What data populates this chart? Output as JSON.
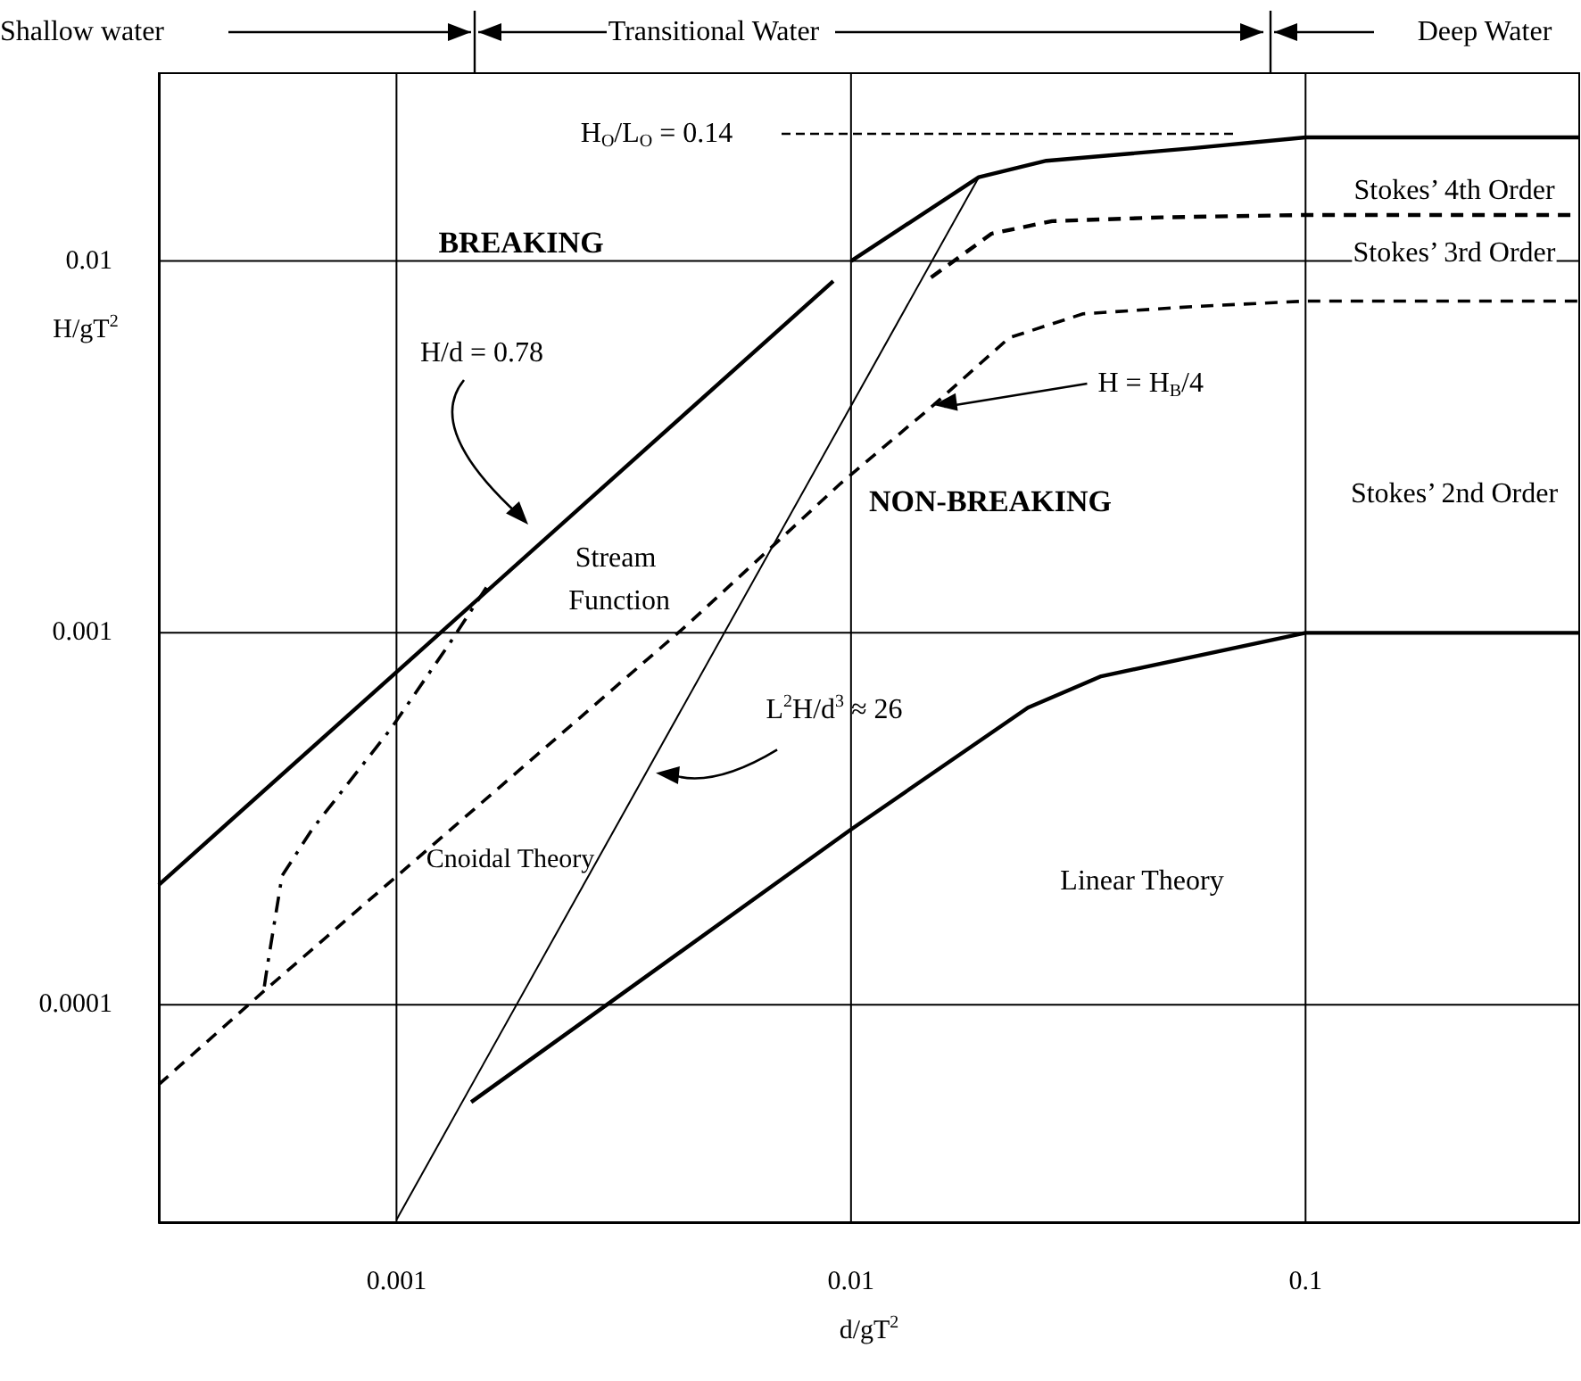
{
  "chart_data": {
    "type": "line",
    "xlabel": "d/gT$^{2}$",
    "ylabel": "H/gT$^{2}$",
    "xlim": [
      0.0003,
      0.4
    ],
    "ylim": [
      2.6e-05,
      0.032
    ],
    "xticks": [
      0.001,
      0.01,
      0.1
    ],
    "yticks": [
      0.0001,
      0.001,
      0.01
    ],
    "log": "xy",
    "grid": true,
    "marker": "none",
    "series": [
      {
        "color": "#000000",
        "line_style": "solid",
        "x": [
          0.0003,
          0.00914
        ],
        "values": [
          0.00021,
          0.00883
        ]
      },
      {
        "color": "#000000",
        "line_style": "solid",
        "x": [
          0.01,
          0.0191,
          0.0269,
          0.0564,
          0.1,
          0.4
        ],
        "values": [
          0.01,
          0.0168,
          0.0186,
          0.0201,
          0.0215,
          0.0215
        ]
      },
      {
        "color": "#000000",
        "line_style": "dashed",
        "x": [
          0.015,
          0.0204,
          0.0277,
          0.0482,
          0.1,
          0.4
        ],
        "values": [
          0.00903,
          0.01185,
          0.0128,
          0.0131,
          0.0133,
          0.0133
        ]
      },
      {
        "color": "#000000",
        "line_style": "dashed",
        "x": [
          0.0003,
          0.000512,
          0.00436,
          0.00948,
          0.0152,
          0.0223,
          0.0324,
          0.0564,
          0.1,
          0.4
        ],
        "values": [
          6.1e-05,
          0.000109,
          0.00105,
          0.00252,
          0.0041,
          0.00622,
          0.00721,
          0.00754,
          0.0078,
          0.0078
        ]
      },
      {
        "color": "#000000",
        "line_style": "solid",
        "x": [
          0.00146,
          0.01,
          0.0245,
          0.0355,
          0.1,
          0.4
        ],
        "values": [
          5.47e-05,
          0.000296,
          0.000629,
          0.000764,
          0.001,
          0.001
        ]
      },
      {
        "color": "#000000",
        "line_style": "solid",
        "x": [
          0.001,
          0.0191
        ],
        "values": [
          2.64e-05,
          0.0168
        ]
      },
      {
        "color": "#000000",
        "line_style": "dashdot",
        "x": [
          0.000512,
          0.000521,
          0.00056,
          0.000652,
          0.000973,
          0.00131,
          0.00158
        ],
        "values": [
          0.000112,
          0.000129,
          0.000222,
          0.000296,
          0.000553,
          0.000938,
          0.00133
        ]
      }
    ],
    "annotations": [
      "BREAKING",
      "NON-BREAKING",
      "Stream Function",
      "Cnoidal Theory",
      "Linear Theory",
      "Stokes’ 4th Order",
      "Stokes’ 3rd Order",
      "Stokes’ 2nd Order",
      "Shallow water",
      "Transitional Water",
      "Deep Water",
      "H/d = 0.78",
      {
        "text": "H = H$_{B}$/4",
        "x": 0.0152,
        "y": 0.0041
      },
      {
        "text": "L$^{2}$H/d$^{3}$ ≈ 26",
        "x": 0.00372,
        "y": 0.00042
      },
      "H$_{O}$/L$_{O}$ = 0.14"
    ]
  }
}
